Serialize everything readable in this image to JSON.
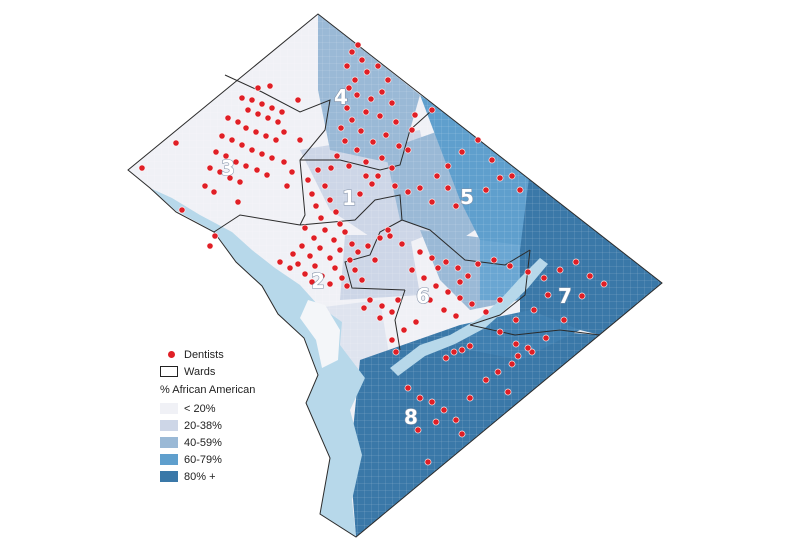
{
  "wards": [
    {
      "id": "1",
      "label": "1"
    },
    {
      "id": "2",
      "label": "2"
    },
    {
      "id": "3",
      "label": "3"
    },
    {
      "id": "4",
      "label": "4"
    },
    {
      "id": "5",
      "label": "5"
    },
    {
      "id": "6",
      "label": "6"
    },
    {
      "id": "7",
      "label": "7"
    },
    {
      "id": "8",
      "label": "8"
    }
  ],
  "legend": {
    "dentists_label": "Dentists",
    "wards_label": "Wards",
    "pct_title": "% African American",
    "classes": [
      {
        "label": "< 20%",
        "color": "#f0f1f6"
      },
      {
        "label": "20-38%",
        "color": "#cdd6e7"
      },
      {
        "label": "40-59%",
        "color": "#9ab9d6"
      },
      {
        "label": "60-79%",
        "color": "#5f9fcd"
      },
      {
        "label": "80% +",
        "color": "#3a78a8"
      }
    ]
  },
  "colors": {
    "dentist": "#e01f26",
    "water": "#b7d8ea",
    "ward_border": "#2b2b2b"
  }
}
